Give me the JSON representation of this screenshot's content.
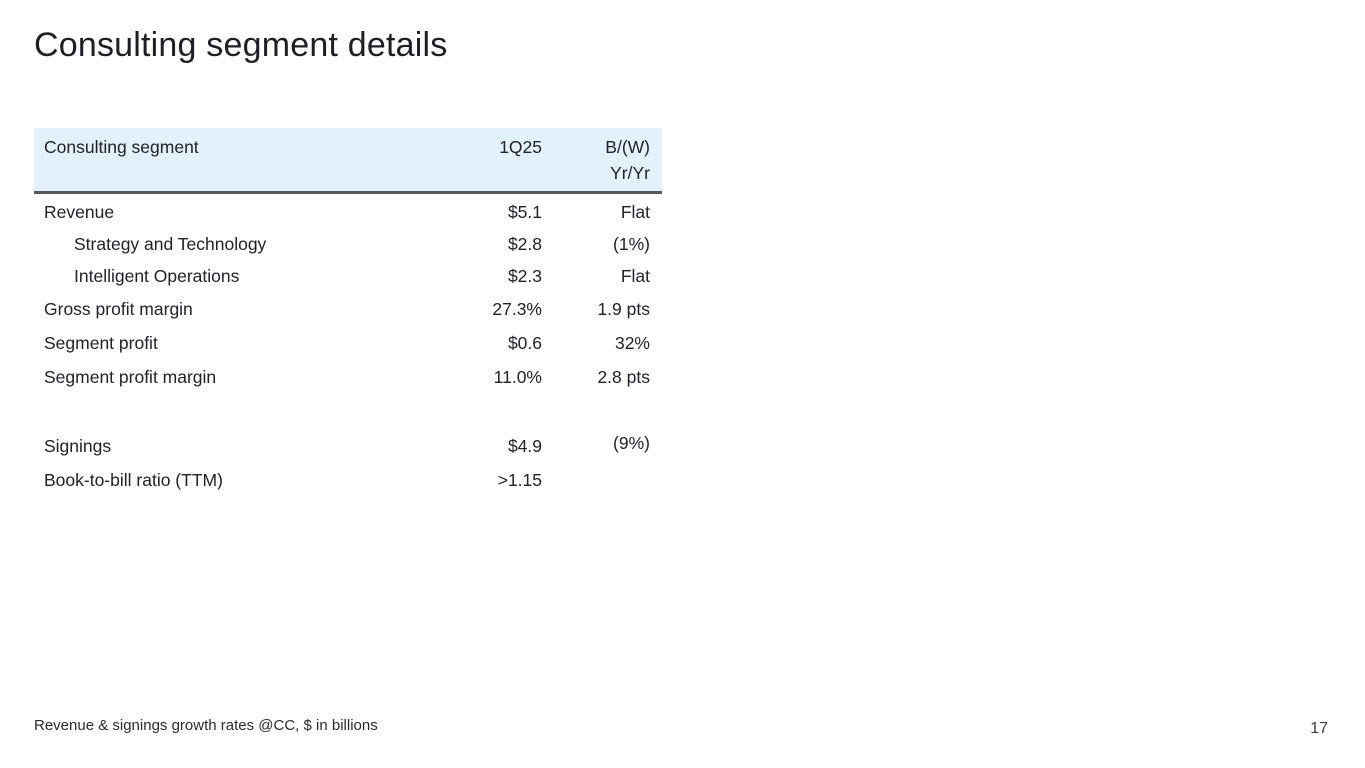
{
  "slide": {
    "title": "Consulting segment details",
    "footnote": "Revenue & signings growth rates @CC, $ in billions",
    "page_number": "17"
  },
  "table": {
    "header": {
      "segment_label": "Consulting segment",
      "period_label": "1Q25",
      "change_label_line1": "B/(W)",
      "change_label_line2": "Yr/Yr"
    },
    "rows": [
      {
        "label": "Revenue",
        "value": "$5.1",
        "yoy": "Flat"
      },
      {
        "label": "Strategy and Technology",
        "value": "$2.8",
        "yoy": "(1%)"
      },
      {
        "label": "Intelligent Operations",
        "value": "$2.3",
        "yoy": "Flat"
      },
      {
        "label": "Gross profit margin",
        "value": "27.3%",
        "yoy": "1.9 pts"
      },
      {
        "label": "Segment profit",
        "value": "$0.6",
        "yoy": "32%"
      },
      {
        "label": "Segment profit margin",
        "value": "11.0%",
        "yoy": "2.8 pts"
      },
      {
        "label": "Signings",
        "value": "$4.9",
        "yoy": "(9%)"
      },
      {
        "label": "Book-to-bill ratio (TTM)",
        "value": ">1.15",
        "yoy": ""
      }
    ]
  },
  "colors": {
    "header_background": "#e2f1fb",
    "header_border": "#55595f",
    "text": "#22222a"
  }
}
